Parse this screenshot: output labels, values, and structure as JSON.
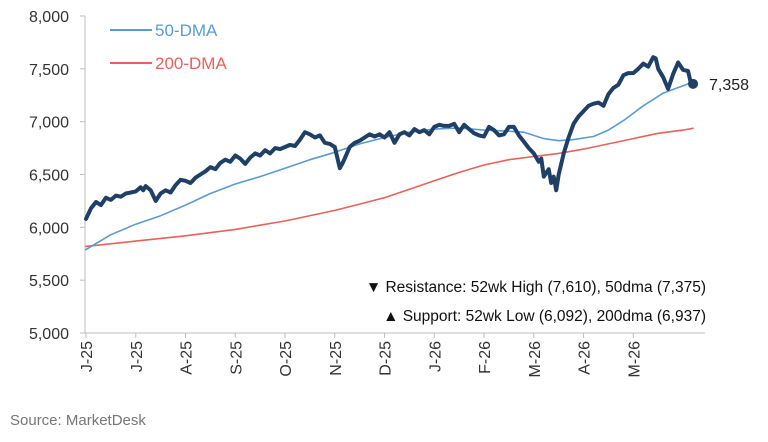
{
  "chart_data": {
    "type": "line",
    "ylim": [
      5000,
      8000
    ],
    "yticks": [
      "5,000",
      "5,500",
      "6,000",
      "6,500",
      "7,000",
      "7,500",
      "8,000"
    ],
    "xlim": [
      0,
      12.3
    ],
    "xticks": [
      "J-25",
      "J-25",
      "A-25",
      "S-25",
      "O-25",
      "N-25",
      "D-25",
      "J-26",
      "F-26",
      "M-26",
      "A-26",
      "M-26"
    ],
    "grid": false,
    "legend": {
      "placement": "top-left",
      "items": [
        {
          "label": "50-DMA",
          "color": "#5b9bd5"
        },
        {
          "label": "200-DMA",
          "color": "#e8615a"
        }
      ]
    },
    "series": [
      {
        "color": "#1f3f66",
        "values": [
          [
            0.0,
            6080
          ],
          [
            0.1,
            6180
          ],
          [
            0.2,
            6240
          ],
          [
            0.3,
            6210
          ],
          [
            0.4,
            6280
          ],
          [
            0.5,
            6260
          ],
          [
            0.6,
            6300
          ],
          [
            0.7,
            6290
          ],
          [
            0.8,
            6320
          ],
          [
            0.9,
            6330
          ],
          [
            1.0,
            6340
          ],
          [
            1.1,
            6380
          ],
          [
            1.15,
            6350
          ],
          [
            1.2,
            6390
          ],
          [
            1.3,
            6350
          ],
          [
            1.35,
            6300
          ],
          [
            1.4,
            6250
          ],
          [
            1.5,
            6320
          ],
          [
            1.6,
            6350
          ],
          [
            1.7,
            6330
          ],
          [
            1.8,
            6400
          ],
          [
            1.9,
            6450
          ],
          [
            2.0,
            6440
          ],
          [
            2.1,
            6420
          ],
          [
            2.2,
            6470
          ],
          [
            2.3,
            6500
          ],
          [
            2.4,
            6530
          ],
          [
            2.5,
            6570
          ],
          [
            2.6,
            6550
          ],
          [
            2.7,
            6610
          ],
          [
            2.8,
            6640
          ],
          [
            2.9,
            6620
          ],
          [
            3.0,
            6680
          ],
          [
            3.1,
            6650
          ],
          [
            3.2,
            6600
          ],
          [
            3.3,
            6660
          ],
          [
            3.4,
            6700
          ],
          [
            3.5,
            6680
          ],
          [
            3.6,
            6730
          ],
          [
            3.7,
            6700
          ],
          [
            3.8,
            6750
          ],
          [
            3.9,
            6740
          ],
          [
            4.0,
            6760
          ],
          [
            4.1,
            6780
          ],
          [
            4.2,
            6770
          ],
          [
            4.3,
            6830
          ],
          [
            4.4,
            6900
          ],
          [
            4.5,
            6880
          ],
          [
            4.6,
            6850
          ],
          [
            4.7,
            6870
          ],
          [
            4.8,
            6800
          ],
          [
            4.9,
            6790
          ],
          [
            5.0,
            6760
          ],
          [
            5.1,
            6560
          ],
          [
            5.15,
            6600
          ],
          [
            5.2,
            6650
          ],
          [
            5.3,
            6760
          ],
          [
            5.4,
            6800
          ],
          [
            5.5,
            6820
          ],
          [
            5.6,
            6850
          ],
          [
            5.7,
            6880
          ],
          [
            5.8,
            6860
          ],
          [
            5.9,
            6880
          ],
          [
            6.0,
            6850
          ],
          [
            6.1,
            6900
          ],
          [
            6.2,
            6800
          ],
          [
            6.3,
            6880
          ],
          [
            6.4,
            6900
          ],
          [
            6.5,
            6870
          ],
          [
            6.6,
            6930
          ],
          [
            6.7,
            6900
          ],
          [
            6.8,
            6920
          ],
          [
            6.9,
            6880
          ],
          [
            7.0,
            6950
          ],
          [
            7.1,
            6970
          ],
          [
            7.2,
            6960
          ],
          [
            7.3,
            6960
          ],
          [
            7.4,
            6980
          ],
          [
            7.5,
            6900
          ],
          [
            7.6,
            6970
          ],
          [
            7.7,
            6930
          ],
          [
            7.8,
            6890
          ],
          [
            7.9,
            6870
          ],
          [
            8.0,
            6860
          ],
          [
            8.1,
            6950
          ],
          [
            8.2,
            6920
          ],
          [
            8.3,
            6870
          ],
          [
            8.4,
            6880
          ],
          [
            8.5,
            6950
          ],
          [
            8.6,
            6950
          ],
          [
            8.7,
            6870
          ],
          [
            8.8,
            6810
          ],
          [
            8.9,
            6750
          ],
          [
            9.0,
            6700
          ],
          [
            9.1,
            6620
          ],
          [
            9.15,
            6650
          ],
          [
            9.2,
            6480
          ],
          [
            9.3,
            6550
          ],
          [
            9.35,
            6420
          ],
          [
            9.4,
            6480
          ],
          [
            9.45,
            6350
          ],
          [
            9.5,
            6500
          ],
          [
            9.6,
            6700
          ],
          [
            9.7,
            6850
          ],
          [
            9.8,
            6980
          ],
          [
            9.9,
            7050
          ],
          [
            10.0,
            7100
          ],
          [
            10.1,
            7150
          ],
          [
            10.2,
            7170
          ],
          [
            10.3,
            7180
          ],
          [
            10.4,
            7150
          ],
          [
            10.5,
            7260
          ],
          [
            10.6,
            7320
          ],
          [
            10.7,
            7350
          ],
          [
            10.8,
            7440
          ],
          [
            10.9,
            7460
          ],
          [
            11.0,
            7460
          ],
          [
            11.1,
            7500
          ],
          [
            11.2,
            7550
          ],
          [
            11.3,
            7520
          ],
          [
            11.4,
            7610
          ],
          [
            11.45,
            7600
          ],
          [
            11.5,
            7500
          ],
          [
            11.6,
            7420
          ],
          [
            11.7,
            7310
          ],
          [
            11.8,
            7450
          ],
          [
            11.9,
            7560
          ],
          [
            12.0,
            7490
          ],
          [
            12.1,
            7480
          ],
          [
            12.15,
            7380
          ],
          [
            12.2,
            7358
          ]
        ]
      },
      {
        "name": "50-DMA",
        "color": "#5b9bd5",
        "values": [
          [
            0.0,
            5790
          ],
          [
            0.5,
            5930
          ],
          [
            1.0,
            6030
          ],
          [
            1.5,
            6110
          ],
          [
            2.0,
            6210
          ],
          [
            2.5,
            6320
          ],
          [
            3.0,
            6410
          ],
          [
            3.5,
            6480
          ],
          [
            4.0,
            6560
          ],
          [
            4.5,
            6640
          ],
          [
            5.0,
            6710
          ],
          [
            5.5,
            6790
          ],
          [
            6.0,
            6850
          ],
          [
            6.5,
            6900
          ],
          [
            7.0,
            6930
          ],
          [
            7.5,
            6940
          ],
          [
            8.0,
            6920
          ],
          [
            8.5,
            6910
          ],
          [
            8.8,
            6900
          ],
          [
            9.2,
            6840
          ],
          [
            9.5,
            6820
          ],
          [
            9.8,
            6830
          ],
          [
            10.2,
            6860
          ],
          [
            10.5,
            6920
          ],
          [
            10.8,
            7010
          ],
          [
            11.2,
            7150
          ],
          [
            11.6,
            7270
          ],
          [
            12.0,
            7340
          ],
          [
            12.2,
            7375
          ]
        ]
      },
      {
        "name": "200-DMA",
        "color": "#e8615a",
        "values": [
          [
            0.0,
            5820
          ],
          [
            1.0,
            5870
          ],
          [
            2.0,
            5920
          ],
          [
            3.0,
            5980
          ],
          [
            4.0,
            6060
          ],
          [
            5.0,
            6160
          ],
          [
            5.5,
            6220
          ],
          [
            6.0,
            6280
          ],
          [
            6.5,
            6360
          ],
          [
            7.0,
            6440
          ],
          [
            7.5,
            6520
          ],
          [
            8.0,
            6590
          ],
          [
            8.5,
            6640
          ],
          [
            9.0,
            6670
          ],
          [
            9.5,
            6700
          ],
          [
            10.0,
            6740
          ],
          [
            10.5,
            6790
          ],
          [
            11.0,
            6840
          ],
          [
            11.5,
            6890
          ],
          [
            12.0,
            6920
          ],
          [
            12.2,
            6937
          ]
        ]
      }
    ],
    "end_label": "7,358",
    "end_value": 7358,
    "annotations": [
      "▼ Resistance:  52wk High (7,610), 50dma (7,375)",
      "▲ Support:  52wk Low (6,092), 200dma (6,937)"
    ]
  },
  "source": "Source: MarketDesk"
}
